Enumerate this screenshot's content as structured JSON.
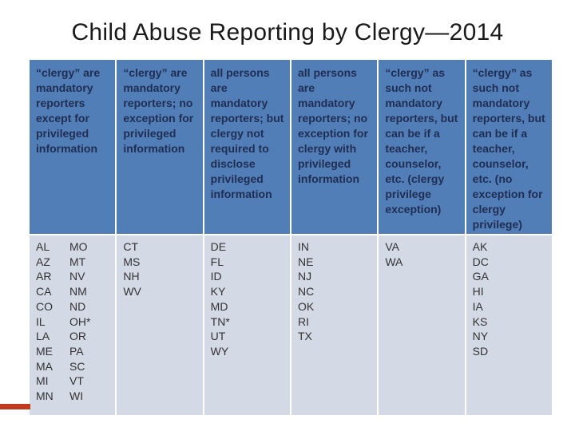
{
  "slide": {
    "title": "Child Abuse Reporting by Clergy—2014"
  },
  "colors": {
    "header_bg": "#527EB8",
    "body_bg": "#D3D9E5",
    "header_text": "#1F2D52",
    "body_text": "#333333",
    "title_text": "#1A1A1A",
    "accent_bar": "#C23B1D"
  },
  "table": {
    "columns": [
      {
        "header": "“clergy” are mandatory reporters except for privileged information",
        "state_rows": [
          [
            "AL",
            "MO"
          ],
          [
            "AZ",
            "MT"
          ],
          [
            "AR",
            "NV"
          ],
          [
            "CA",
            "NM"
          ],
          [
            "CO",
            "ND"
          ],
          [
            "IL",
            "OH*"
          ],
          [
            "LA",
            "OR"
          ],
          [
            "ME",
            "PA"
          ],
          [
            "MA",
            "SC"
          ],
          [
            "MI",
            "VT"
          ],
          [
            "MN",
            "WI"
          ]
        ]
      },
      {
        "header": "“clergy” are mandatory reporters; no exception for privileged information",
        "state_rows": [
          [
            "CT"
          ],
          [
            "MS"
          ],
          [
            "NH"
          ],
          [
            "WV"
          ]
        ]
      },
      {
        "header": "all persons are mandatory reporters; but clergy not required to disclose privileged information",
        "state_rows": [
          [
            "DE"
          ],
          [
            "FL"
          ],
          [
            "ID"
          ],
          [
            "KY"
          ],
          [
            "MD"
          ],
          [
            "TN*"
          ],
          [
            "UT"
          ],
          [
            "WY"
          ]
        ]
      },
      {
        "header": "all persons are mandatory reporters; no exception for clergy with privileged information",
        "state_rows": [
          [
            "IN"
          ],
          [
            "NE"
          ],
          [
            "NJ"
          ],
          [
            "NC"
          ],
          [
            "OK"
          ],
          [
            "RI"
          ],
          [
            "TX"
          ]
        ]
      },
      {
        "header": "“clergy” as such not mandatory reporters, but can be if a teacher, counselor, etc. (clergy privilege exception)",
        "state_rows": [
          [
            "VA"
          ],
          [
            "WA"
          ]
        ]
      },
      {
        "header": "“clergy” as such not mandatory reporters, but can be if a teacher, counselor, etc. (no exception for clergy privilege)",
        "state_rows": [
          [
            "AK"
          ],
          [
            "DC"
          ],
          [
            "GA"
          ],
          [
            "HI"
          ],
          [
            "IA"
          ],
          [
            "KS"
          ],
          [
            "NY"
          ],
          [
            "SD"
          ]
        ]
      }
    ]
  }
}
